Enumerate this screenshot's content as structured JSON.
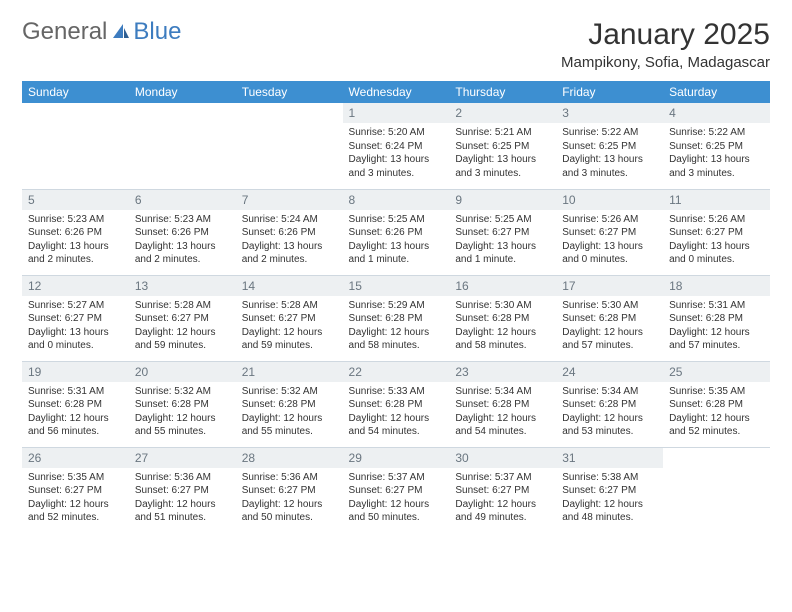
{
  "brand": {
    "part1": "General",
    "part2": "Blue"
  },
  "title": "January 2025",
  "location": "Mampikony, Sofia, Madagascar",
  "colors": {
    "header_bg": "#3d8fd1",
    "header_text": "#ffffff",
    "daynum_bg": "#edf0f2",
    "daynum_text": "#6a7680",
    "divider": "#cfd8e0",
    "brand_blue": "#3d7cbf"
  },
  "dayNames": [
    "Sunday",
    "Monday",
    "Tuesday",
    "Wednesday",
    "Thursday",
    "Friday",
    "Saturday"
  ],
  "weeks": [
    [
      {
        "n": "",
        "sr": "",
        "ss": "",
        "dl": ""
      },
      {
        "n": "",
        "sr": "",
        "ss": "",
        "dl": ""
      },
      {
        "n": "",
        "sr": "",
        "ss": "",
        "dl": ""
      },
      {
        "n": "1",
        "sr": "Sunrise: 5:20 AM",
        "ss": "Sunset: 6:24 PM",
        "dl": "Daylight: 13 hours and 3 minutes."
      },
      {
        "n": "2",
        "sr": "Sunrise: 5:21 AM",
        "ss": "Sunset: 6:25 PM",
        "dl": "Daylight: 13 hours and 3 minutes."
      },
      {
        "n": "3",
        "sr": "Sunrise: 5:22 AM",
        "ss": "Sunset: 6:25 PM",
        "dl": "Daylight: 13 hours and 3 minutes."
      },
      {
        "n": "4",
        "sr": "Sunrise: 5:22 AM",
        "ss": "Sunset: 6:25 PM",
        "dl": "Daylight: 13 hours and 3 minutes."
      }
    ],
    [
      {
        "n": "5",
        "sr": "Sunrise: 5:23 AM",
        "ss": "Sunset: 6:26 PM",
        "dl": "Daylight: 13 hours and 2 minutes."
      },
      {
        "n": "6",
        "sr": "Sunrise: 5:23 AM",
        "ss": "Sunset: 6:26 PM",
        "dl": "Daylight: 13 hours and 2 minutes."
      },
      {
        "n": "7",
        "sr": "Sunrise: 5:24 AM",
        "ss": "Sunset: 6:26 PM",
        "dl": "Daylight: 13 hours and 2 minutes."
      },
      {
        "n": "8",
        "sr": "Sunrise: 5:25 AM",
        "ss": "Sunset: 6:26 PM",
        "dl": "Daylight: 13 hours and 1 minute."
      },
      {
        "n": "9",
        "sr": "Sunrise: 5:25 AM",
        "ss": "Sunset: 6:27 PM",
        "dl": "Daylight: 13 hours and 1 minute."
      },
      {
        "n": "10",
        "sr": "Sunrise: 5:26 AM",
        "ss": "Sunset: 6:27 PM",
        "dl": "Daylight: 13 hours and 0 minutes."
      },
      {
        "n": "11",
        "sr": "Sunrise: 5:26 AM",
        "ss": "Sunset: 6:27 PM",
        "dl": "Daylight: 13 hours and 0 minutes."
      }
    ],
    [
      {
        "n": "12",
        "sr": "Sunrise: 5:27 AM",
        "ss": "Sunset: 6:27 PM",
        "dl": "Daylight: 13 hours and 0 minutes."
      },
      {
        "n": "13",
        "sr": "Sunrise: 5:28 AM",
        "ss": "Sunset: 6:27 PM",
        "dl": "Daylight: 12 hours and 59 minutes."
      },
      {
        "n": "14",
        "sr": "Sunrise: 5:28 AM",
        "ss": "Sunset: 6:27 PM",
        "dl": "Daylight: 12 hours and 59 minutes."
      },
      {
        "n": "15",
        "sr": "Sunrise: 5:29 AM",
        "ss": "Sunset: 6:28 PM",
        "dl": "Daylight: 12 hours and 58 minutes."
      },
      {
        "n": "16",
        "sr": "Sunrise: 5:30 AM",
        "ss": "Sunset: 6:28 PM",
        "dl": "Daylight: 12 hours and 58 minutes."
      },
      {
        "n": "17",
        "sr": "Sunrise: 5:30 AM",
        "ss": "Sunset: 6:28 PM",
        "dl": "Daylight: 12 hours and 57 minutes."
      },
      {
        "n": "18",
        "sr": "Sunrise: 5:31 AM",
        "ss": "Sunset: 6:28 PM",
        "dl": "Daylight: 12 hours and 57 minutes."
      }
    ],
    [
      {
        "n": "19",
        "sr": "Sunrise: 5:31 AM",
        "ss": "Sunset: 6:28 PM",
        "dl": "Daylight: 12 hours and 56 minutes."
      },
      {
        "n": "20",
        "sr": "Sunrise: 5:32 AM",
        "ss": "Sunset: 6:28 PM",
        "dl": "Daylight: 12 hours and 55 minutes."
      },
      {
        "n": "21",
        "sr": "Sunrise: 5:32 AM",
        "ss": "Sunset: 6:28 PM",
        "dl": "Daylight: 12 hours and 55 minutes."
      },
      {
        "n": "22",
        "sr": "Sunrise: 5:33 AM",
        "ss": "Sunset: 6:28 PM",
        "dl": "Daylight: 12 hours and 54 minutes."
      },
      {
        "n": "23",
        "sr": "Sunrise: 5:34 AM",
        "ss": "Sunset: 6:28 PM",
        "dl": "Daylight: 12 hours and 54 minutes."
      },
      {
        "n": "24",
        "sr": "Sunrise: 5:34 AM",
        "ss": "Sunset: 6:28 PM",
        "dl": "Daylight: 12 hours and 53 minutes."
      },
      {
        "n": "25",
        "sr": "Sunrise: 5:35 AM",
        "ss": "Sunset: 6:28 PM",
        "dl": "Daylight: 12 hours and 52 minutes."
      }
    ],
    [
      {
        "n": "26",
        "sr": "Sunrise: 5:35 AM",
        "ss": "Sunset: 6:27 PM",
        "dl": "Daylight: 12 hours and 52 minutes."
      },
      {
        "n": "27",
        "sr": "Sunrise: 5:36 AM",
        "ss": "Sunset: 6:27 PM",
        "dl": "Daylight: 12 hours and 51 minutes."
      },
      {
        "n": "28",
        "sr": "Sunrise: 5:36 AM",
        "ss": "Sunset: 6:27 PM",
        "dl": "Daylight: 12 hours and 50 minutes."
      },
      {
        "n": "29",
        "sr": "Sunrise: 5:37 AM",
        "ss": "Sunset: 6:27 PM",
        "dl": "Daylight: 12 hours and 50 minutes."
      },
      {
        "n": "30",
        "sr": "Sunrise: 5:37 AM",
        "ss": "Sunset: 6:27 PM",
        "dl": "Daylight: 12 hours and 49 minutes."
      },
      {
        "n": "31",
        "sr": "Sunrise: 5:38 AM",
        "ss": "Sunset: 6:27 PM",
        "dl": "Daylight: 12 hours and 48 minutes."
      },
      {
        "n": "",
        "sr": "",
        "ss": "",
        "dl": ""
      }
    ]
  ]
}
